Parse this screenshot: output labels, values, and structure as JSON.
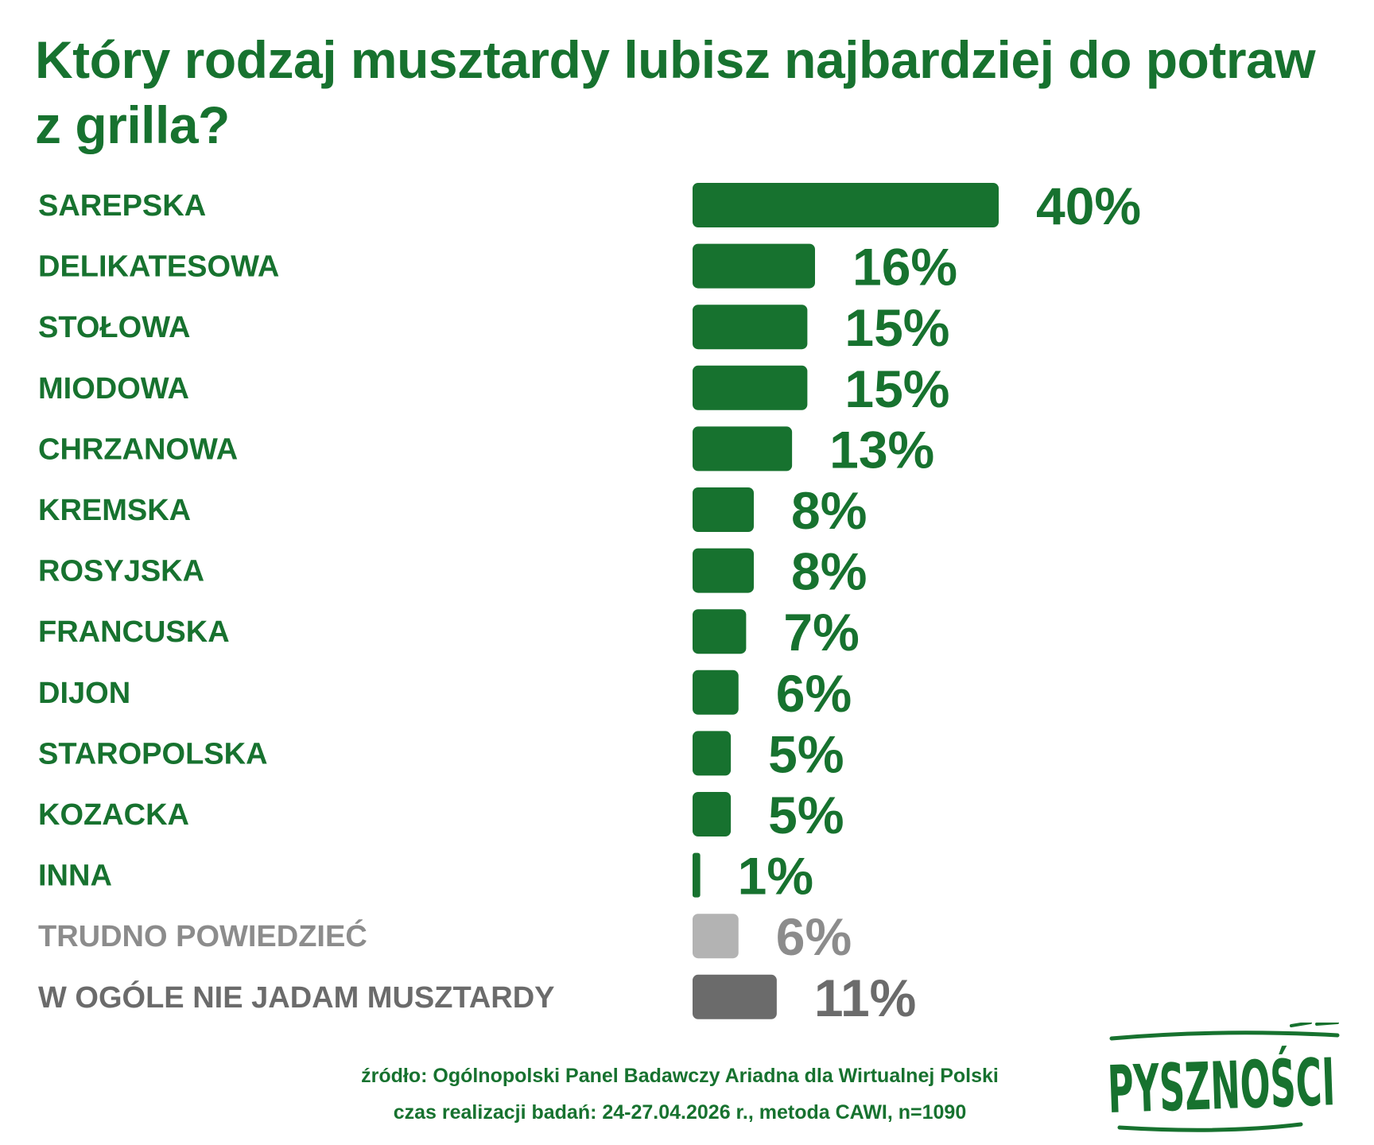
{
  "title": "Który rodzaj musztardy lubisz najbardziej do potraw z grilla?",
  "footer": {
    "source": "źródło: Ogólnopolski Panel Badawczy Ariadna dla Wirtualnej Polski",
    "details": "czas realizacji badań: 24-27.04.2026 r., metoda CAWI, n=1090"
  },
  "logo_text": "PYSZNOŚCI",
  "colors": {
    "green": "#17722f",
    "light_gray": "#b3b3b3",
    "dark_gray": "#6b6b6b",
    "gray_text_light": "#8c8c8c",
    "gray_text_dark": "#6b6b6b"
  },
  "chart_data": {
    "type": "bar",
    "orientation": "horizontal",
    "categories": [
      "SAREPSKA",
      "DELIKATESOWA",
      "STOŁOWA",
      "MIODOWA",
      "CHRZANOWA",
      "KREMSKA",
      "ROSYJSKA",
      "FRANCUSKA",
      "DIJON",
      "STAROPOLSKA",
      "KOZACKA",
      "INNA",
      "TRUDNO POWIEDZIEĆ",
      "W OGÓLE NIE JADAM MUSZTARDY"
    ],
    "values": [
      40,
      16,
      15,
      15,
      13,
      8,
      8,
      7,
      6,
      5,
      5,
      1,
      6,
      11
    ],
    "value_labels": [
      "40%",
      "16%",
      "15%",
      "15%",
      "13%",
      "8%",
      "8%",
      "7%",
      "6%",
      "5%",
      "5%",
      "1%",
      "6%",
      "11%"
    ],
    "bar_colors": [
      "green",
      "green",
      "green",
      "green",
      "green",
      "green",
      "green",
      "green",
      "green",
      "green",
      "green",
      "green",
      "light_gray",
      "dark_gray"
    ],
    "unit": "%",
    "xlim": [
      0,
      40
    ],
    "grid": false,
    "legend": "none"
  }
}
